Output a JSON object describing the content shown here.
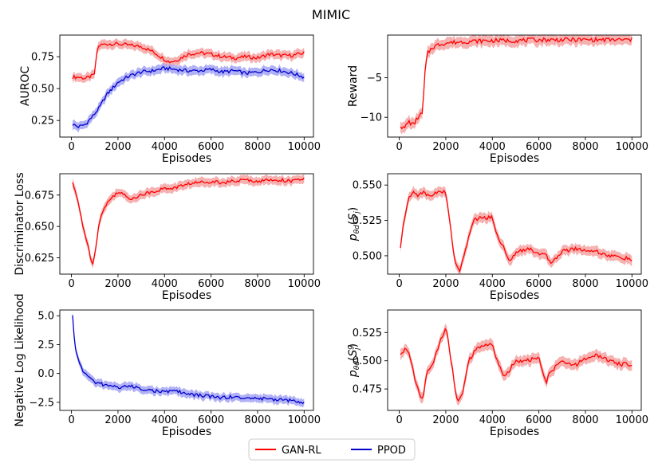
{
  "title": "MIMIC",
  "colors": {
    "gan": "#ff0000",
    "ppod": "#0000cc",
    "gan_band": "#f4a3a3",
    "ppod_band": "#a3a3f4"
  },
  "legend": {
    "placement": "bottom-center",
    "items": [
      {
        "label": "GAN-RL",
        "color": "#ff0000"
      },
      {
        "label": "PPOD",
        "color": "#0000cc"
      }
    ]
  },
  "chart_data": [
    {
      "type": "line",
      "xlabel": "Episodes",
      "ylabel": "AUROC",
      "xlim": [
        -500,
        10400
      ],
      "ylim": [
        0.12,
        0.92
      ],
      "xticks": [
        0,
        2000,
        4000,
        6000,
        8000,
        10000
      ],
      "yticks": [
        0.25,
        0.5,
        0.75
      ],
      "yticklabels": [
        "0.25",
        "0.50",
        "0.75"
      ],
      "series": [
        {
          "name": "GAN-RL",
          "color": "#ff0000",
          "band": 0.03,
          "x": [
            50,
            300,
            600,
            900,
            1000,
            1100,
            1200,
            1500,
            2000,
            2500,
            3000,
            3500,
            4000,
            4200,
            4500,
            5000,
            5500,
            6000,
            6500,
            7000,
            7500,
            8000,
            8500,
            9000,
            9500,
            10000
          ],
          "y": [
            0.59,
            0.59,
            0.58,
            0.6,
            0.62,
            0.8,
            0.84,
            0.85,
            0.85,
            0.84,
            0.83,
            0.79,
            0.73,
            0.71,
            0.72,
            0.77,
            0.78,
            0.77,
            0.75,
            0.74,
            0.75,
            0.74,
            0.77,
            0.76,
            0.76,
            0.78
          ]
        },
        {
          "name": "PPOD",
          "color": "#0000cc",
          "band": 0.03,
          "x": [
            50,
            300,
            600,
            900,
            1200,
            1500,
            2000,
            2500,
            3000,
            3500,
            4000,
            4500,
            5000,
            5500,
            6000,
            6500,
            7000,
            7500,
            8000,
            8500,
            9000,
            9500,
            10000
          ],
          "y": [
            0.22,
            0.2,
            0.22,
            0.28,
            0.35,
            0.45,
            0.55,
            0.6,
            0.63,
            0.64,
            0.66,
            0.65,
            0.64,
            0.64,
            0.65,
            0.63,
            0.64,
            0.62,
            0.63,
            0.65,
            0.64,
            0.62,
            0.59
          ]
        }
      ]
    },
    {
      "type": "line",
      "xlabel": "Episodes",
      "ylabel": "Reward",
      "xlim": [
        -500,
        10400
      ],
      "ylim": [
        -12.5,
        0.4
      ],
      "xticks": [
        0,
        2000,
        4000,
        6000,
        8000,
        10000
      ],
      "yticks": [
        -10,
        -5
      ],
      "yticklabels": [
        "−10",
        "−5"
      ],
      "series": [
        {
          "name": "GAN-RL",
          "color": "#ff0000",
          "band": 0.6,
          "x": [
            50,
            200,
            400,
            600,
            800,
            1000,
            1100,
            1200,
            1400,
            1700,
            2000,
            2500,
            3000,
            4000,
            5000,
            6000,
            7000,
            8000,
            9000,
            10000
          ],
          "y": [
            -11,
            -11.5,
            -10.5,
            -11,
            -10,
            -9.5,
            -4.5,
            -2,
            -1.2,
            -0.8,
            -0.6,
            -0.5,
            -0.4,
            -0.3,
            -0.3,
            -0.2,
            -0.2,
            -0.2,
            -0.2,
            -0.2
          ]
        }
      ]
    },
    {
      "type": "line",
      "xlabel": "Episodes",
      "ylabel": "Discriminator Loss",
      "xlim": [
        -500,
        10400
      ],
      "ylim": [
        0.612,
        0.692
      ],
      "xticks": [
        0,
        2000,
        4000,
        6000,
        8000,
        10000
      ],
      "yticks": [
        0.625,
        0.65,
        0.675
      ],
      "yticklabels": [
        "0.625",
        "0.650",
        "0.675"
      ],
      "series": [
        {
          "name": "GAN-RL",
          "color": "#ff0000",
          "band": 0.003,
          "x": [
            50,
            300,
            500,
            700,
            900,
            1000,
            1200,
            1500,
            2000,
            2500,
            3000,
            3500,
            4000,
            4500,
            5000,
            5500,
            6000,
            6500,
            7000,
            7500,
            8000,
            8500,
            9000,
            9500,
            10000
          ],
          "y": [
            0.685,
            0.668,
            0.65,
            0.635,
            0.62,
            0.627,
            0.655,
            0.668,
            0.678,
            0.672,
            0.675,
            0.678,
            0.68,
            0.681,
            0.684,
            0.685,
            0.686,
            0.685,
            0.686,
            0.687,
            0.686,
            0.687,
            0.687,
            0.686,
            0.688
          ]
        }
      ]
    },
    {
      "type": "line",
      "xlabel": "Episodes",
      "ylabel": "p_θd(S_j)",
      "xlim": [
        -500,
        10400
      ],
      "ylim": [
        0.487,
        0.558
      ],
      "xticks": [
        0,
        2000,
        4000,
        6000,
        8000,
        10000
      ],
      "yticks": [
        0.5,
        0.525,
        0.55
      ],
      "yticklabels": [
        "0.500",
        "0.525",
        "0.550"
      ],
      "series": [
        {
          "name": "GAN-RL",
          "color": "#ff0000",
          "band": 0.003,
          "x": [
            50,
            200,
            400,
            600,
            800,
            1000,
            1300,
            1600,
            2000,
            2200,
            2400,
            2600,
            2800,
            3000,
            3200,
            3500,
            4000,
            4200,
            4500,
            4800,
            5000,
            5500,
            6000,
            6300,
            6500,
            7000,
            7500,
            8000,
            8500,
            9000,
            9500,
            10000
          ],
          "y": [
            0.505,
            0.525,
            0.54,
            0.545,
            0.543,
            0.545,
            0.542,
            0.545,
            0.545,
            0.52,
            0.495,
            0.49,
            0.5,
            0.515,
            0.525,
            0.527,
            0.527,
            0.515,
            0.505,
            0.495,
            0.503,
            0.505,
            0.502,
            0.5,
            0.495,
            0.503,
            0.505,
            0.504,
            0.503,
            0.5,
            0.499,
            0.497
          ]
        }
      ]
    },
    {
      "type": "line",
      "xlabel": "Episodes",
      "ylabel": "Negative Log Likelihood",
      "xlim": [
        -500,
        10400
      ],
      "ylim": [
        -3.2,
        5.5
      ],
      "xticks": [
        0,
        2000,
        4000,
        6000,
        8000,
        10000
      ],
      "yticks": [
        -2.5,
        0,
        2.5,
        5
      ],
      "yticklabels": [
        "−2.5",
        "0.0",
        "2.5",
        "5.0"
      ],
      "series": [
        {
          "name": "PPOD",
          "color": "#0000cc",
          "band": 0.3,
          "x": [
            50,
            150,
            300,
            500,
            700,
            1000,
            1500,
            2000,
            2500,
            3000,
            3500,
            4000,
            4500,
            5000,
            5500,
            6000,
            6500,
            7000,
            7500,
            8000,
            8500,
            9000,
            9500,
            10000
          ],
          "y": [
            5,
            2.2,
            1.2,
            0.2,
            -0.2,
            -0.8,
            -1,
            -1.2,
            -1.1,
            -1.3,
            -1.5,
            -1.6,
            -1.5,
            -1.8,
            -1.9,
            -2,
            -2.1,
            -2,
            -2.2,
            -2.1,
            -2.3,
            -2.2,
            -2.4,
            -2.5
          ]
        }
      ]
    },
    {
      "type": "line",
      "xlabel": "Episodes",
      "ylabel": "p_θd(S_j^g)",
      "xlim": [
        -500,
        10400
      ],
      "ylim": [
        0.456,
        0.545
      ],
      "xticks": [
        0,
        2000,
        4000,
        6000,
        8000,
        10000
      ],
      "yticks": [
        0.475,
        0.5,
        0.525
      ],
      "yticklabels": [
        "0.475",
        "0.500",
        "0.525"
      ],
      "series": [
        {
          "name": "GAN-RL",
          "color": "#ff0000",
          "band": 0.004,
          "x": [
            50,
            200,
            400,
            600,
            800,
            1000,
            1200,
            1500,
            1800,
            2000,
            2200,
            2400,
            2500,
            2700,
            3000,
            3300,
            3600,
            4000,
            4200,
            4500,
            5000,
            5500,
            6000,
            6300,
            6500,
            7000,
            7500,
            8000,
            8500,
            9000,
            9500,
            10000
          ],
          "y": [
            0.505,
            0.51,
            0.508,
            0.49,
            0.475,
            0.465,
            0.49,
            0.5,
            0.52,
            0.53,
            0.505,
            0.475,
            0.462,
            0.47,
            0.5,
            0.51,
            0.513,
            0.515,
            0.5,
            0.485,
            0.5,
            0.5,
            0.503,
            0.48,
            0.49,
            0.5,
            0.495,
            0.502,
            0.505,
            0.5,
            0.497,
            0.497
          ]
        }
      ]
    }
  ]
}
